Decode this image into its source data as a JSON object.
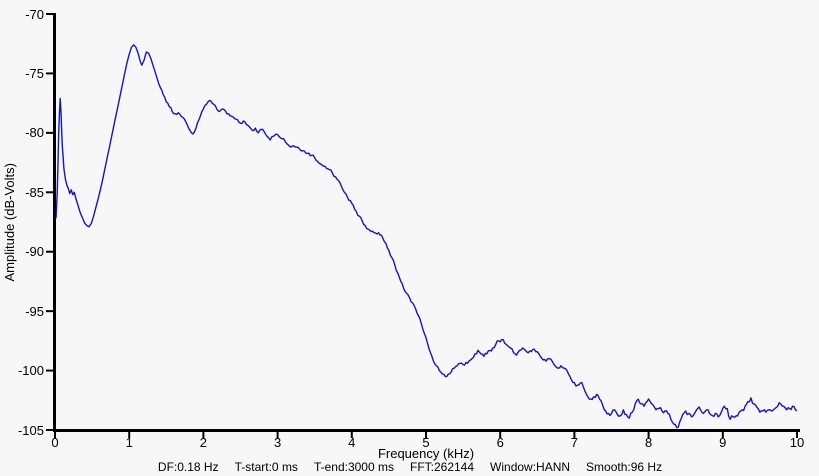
{
  "window": {
    "background_color": "#f7f7f7"
  },
  "status": {
    "fields": [
      "DF:0.18 Hz",
      "T-start:0 ms",
      "T-end:3000 ms",
      "FFT:262144",
      "Window:HANN",
      "Smooth:96 Hz"
    ]
  },
  "chart_data": {
    "type": "line",
    "title": "",
    "xlabel": "Frequency (kHz)",
    "ylabel": "Amplitude (dB-Volts)",
    "xlim": [
      0,
      10
    ],
    "ylim": [
      -105,
      -70
    ],
    "x_ticks": [
      0,
      1,
      2,
      3,
      4,
      5,
      6,
      7,
      8,
      9,
      10
    ],
    "y_ticks": [
      -70,
      -75,
      -80,
      -85,
      -90,
      -95,
      -100,
      -105
    ],
    "grid": false,
    "legend": "none",
    "line_color": "#1414c8",
    "axis_color": "#000000",
    "noise_db_render_hint": [
      0.05,
      0.13,
      0.16,
      0.21
    ],
    "series": [
      {
        "name": "spectrum",
        "points": [
          [
            0.013,
            -87.2
          ],
          [
            0.02,
            -86.4
          ],
          [
            0.03,
            -85.0
          ],
          [
            0.04,
            -82.6
          ],
          [
            0.05,
            -80.0
          ],
          [
            0.06,
            -78.2
          ],
          [
            0.07,
            -77.1
          ],
          [
            0.08,
            -78.1
          ],
          [
            0.09,
            -79.9
          ],
          [
            0.1,
            -81.2
          ],
          [
            0.11,
            -82.1
          ],
          [
            0.12,
            -83.0
          ],
          [
            0.14,
            -83.9
          ],
          [
            0.16,
            -84.4
          ],
          [
            0.18,
            -84.7
          ],
          [
            0.2,
            -85.1
          ],
          [
            0.22,
            -84.8
          ],
          [
            0.24,
            -85.2
          ],
          [
            0.26,
            -85.0
          ],
          [
            0.28,
            -85.5
          ],
          [
            0.3,
            -85.9
          ],
          [
            0.32,
            -86.3
          ],
          [
            0.34,
            -86.7
          ],
          [
            0.36,
            -87.0
          ],
          [
            0.38,
            -87.3
          ],
          [
            0.4,
            -87.6
          ],
          [
            0.43,
            -87.8
          ],
          [
            0.46,
            -87.9
          ],
          [
            0.49,
            -87.6
          ],
          [
            0.52,
            -87.0
          ],
          [
            0.55,
            -86.3
          ],
          [
            0.58,
            -85.6
          ],
          [
            0.61,
            -84.8
          ],
          [
            0.64,
            -84.0
          ],
          [
            0.67,
            -83.1
          ],
          [
            0.7,
            -82.2
          ],
          [
            0.73,
            -81.3
          ],
          [
            0.76,
            -80.4
          ],
          [
            0.79,
            -79.5
          ],
          [
            0.82,
            -78.6
          ],
          [
            0.85,
            -77.7
          ],
          [
            0.88,
            -76.8
          ],
          [
            0.91,
            -75.9
          ],
          [
            0.94,
            -75.0
          ],
          [
            0.97,
            -74.1
          ],
          [
            1.0,
            -73.4
          ],
          [
            1.03,
            -72.8
          ],
          [
            1.06,
            -72.6
          ],
          [
            1.09,
            -72.8
          ],
          [
            1.12,
            -73.3
          ],
          [
            1.15,
            -74.0
          ],
          [
            1.17,
            -74.3
          ],
          [
            1.2,
            -73.9
          ],
          [
            1.23,
            -73.2
          ],
          [
            1.26,
            -73.3
          ],
          [
            1.29,
            -73.7
          ],
          [
            1.32,
            -74.3
          ],
          [
            1.35,
            -74.9
          ],
          [
            1.38,
            -75.5
          ],
          [
            1.42,
            -76.2
          ],
          [
            1.46,
            -76.8
          ],
          [
            1.5,
            -77.4
          ],
          [
            1.54,
            -77.8
          ],
          [
            1.58,
            -78.2
          ],
          [
            1.62,
            -78.4
          ],
          [
            1.66,
            -78.3
          ],
          [
            1.7,
            -78.6
          ],
          [
            1.74,
            -78.8
          ],
          [
            1.78,
            -79.3
          ],
          [
            1.82,
            -79.8
          ],
          [
            1.86,
            -80.1
          ],
          [
            1.9,
            -79.6
          ],
          [
            1.94,
            -78.9
          ],
          [
            1.98,
            -78.2
          ],
          [
            2.02,
            -77.7
          ],
          [
            2.06,
            -77.4
          ],
          [
            2.1,
            -77.3
          ],
          [
            2.14,
            -77.6
          ],
          [
            2.18,
            -78.0
          ],
          [
            2.22,
            -78.2
          ],
          [
            2.26,
            -78.0
          ],
          [
            2.3,
            -78.2
          ],
          [
            2.34,
            -78.4
          ],
          [
            2.38,
            -78.6
          ],
          [
            2.42,
            -78.8
          ],
          [
            2.46,
            -78.9
          ],
          [
            2.5,
            -79.2
          ],
          [
            2.54,
            -79.0
          ],
          [
            2.58,
            -79.3
          ],
          [
            2.62,
            -79.5
          ],
          [
            2.66,
            -79.8
          ],
          [
            2.7,
            -79.6
          ],
          [
            2.74,
            -80.0
          ],
          [
            2.78,
            -79.7
          ],
          [
            2.82,
            -79.9
          ],
          [
            2.86,
            -80.3
          ],
          [
            2.9,
            -80.6
          ],
          [
            2.94,
            -80.3
          ],
          [
            2.98,
            -80.1
          ],
          [
            3.02,
            -80.3
          ],
          [
            3.06,
            -80.5
          ],
          [
            3.1,
            -80.7
          ],
          [
            3.14,
            -81.0
          ],
          [
            3.18,
            -81.2
          ],
          [
            3.22,
            -81.1
          ],
          [
            3.26,
            -81.2
          ],
          [
            3.3,
            -81.4
          ],
          [
            3.34,
            -81.5
          ],
          [
            3.38,
            -81.7
          ],
          [
            3.42,
            -81.7
          ],
          [
            3.46,
            -81.9
          ],
          [
            3.5,
            -82.1
          ],
          [
            3.54,
            -82.4
          ],
          [
            3.58,
            -82.6
          ],
          [
            3.62,
            -82.8
          ],
          [
            3.66,
            -83.0
          ],
          [
            3.7,
            -83.1
          ],
          [
            3.74,
            -83.4
          ],
          [
            3.78,
            -83.7
          ],
          [
            3.82,
            -84.0
          ],
          [
            3.86,
            -84.5
          ],
          [
            3.9,
            -85.0
          ],
          [
            3.94,
            -85.4
          ],
          [
            3.98,
            -85.7
          ],
          [
            4.02,
            -86.1
          ],
          [
            4.06,
            -86.6
          ],
          [
            4.1,
            -87.0
          ],
          [
            4.14,
            -87.4
          ],
          [
            4.18,
            -87.8
          ],
          [
            4.22,
            -88.1
          ],
          [
            4.26,
            -88.3
          ],
          [
            4.3,
            -88.4
          ],
          [
            4.34,
            -88.5
          ],
          [
            4.38,
            -88.6
          ],
          [
            4.42,
            -88.9
          ],
          [
            4.46,
            -89.3
          ],
          [
            4.5,
            -89.9
          ],
          [
            4.54,
            -90.5
          ],
          [
            4.58,
            -91.1
          ],
          [
            4.62,
            -91.8
          ],
          [
            4.66,
            -92.5
          ],
          [
            4.7,
            -93.1
          ],
          [
            4.74,
            -93.5
          ],
          [
            4.78,
            -93.9
          ],
          [
            4.82,
            -94.3
          ],
          [
            4.86,
            -94.8
          ],
          [
            4.9,
            -95.4
          ],
          [
            4.94,
            -96.1
          ],
          [
            4.98,
            -96.9
          ],
          [
            5.02,
            -97.7
          ],
          [
            5.06,
            -98.5
          ],
          [
            5.1,
            -99.2
          ],
          [
            5.14,
            -99.6
          ],
          [
            5.18,
            -100.0
          ],
          [
            5.22,
            -100.3
          ],
          [
            5.26,
            -100.5
          ],
          [
            5.3,
            -100.3
          ],
          [
            5.34,
            -100.1
          ],
          [
            5.38,
            -99.8
          ],
          [
            5.42,
            -99.6
          ],
          [
            5.46,
            -99.4
          ],
          [
            5.5,
            -99.5
          ],
          [
            5.54,
            -99.3
          ],
          [
            5.58,
            -99.2
          ],
          [
            5.62,
            -99.0
          ],
          [
            5.66,
            -98.6
          ],
          [
            5.7,
            -98.3
          ],
          [
            5.74,
            -98.6
          ],
          [
            5.78,
            -98.8
          ],
          [
            5.82,
            -98.6
          ],
          [
            5.86,
            -98.3
          ],
          [
            5.9,
            -98.1
          ],
          [
            5.94,
            -97.8
          ],
          [
            5.98,
            -97.5
          ],
          [
            6.02,
            -97.4
          ],
          [
            6.06,
            -97.7
          ],
          [
            6.1,
            -97.9
          ],
          [
            6.14,
            -98.1
          ],
          [
            6.18,
            -98.5
          ],
          [
            6.22,
            -98.7
          ],
          [
            6.26,
            -98.3
          ],
          [
            6.3,
            -98.1
          ],
          [
            6.34,
            -98.3
          ],
          [
            6.38,
            -98.5
          ],
          [
            6.42,
            -98.4
          ],
          [
            6.46,
            -98.2
          ],
          [
            6.5,
            -98.4
          ],
          [
            6.54,
            -98.8
          ],
          [
            6.58,
            -99.1
          ],
          [
            6.62,
            -99.2
          ],
          [
            6.66,
            -99.0
          ],
          [
            6.7,
            -99.2
          ],
          [
            6.74,
            -99.6
          ],
          [
            6.78,
            -99.8
          ],
          [
            6.82,
            -99.6
          ],
          [
            6.86,
            -99.8
          ],
          [
            6.9,
            -100.0
          ],
          [
            6.94,
            -100.5
          ],
          [
            6.98,
            -101.0
          ],
          [
            7.02,
            -101.3
          ],
          [
            7.06,
            -101.2
          ],
          [
            7.1,
            -101.0
          ],
          [
            7.14,
            -101.7
          ],
          [
            7.18,
            -102.2
          ],
          [
            7.22,
            -102.4
          ],
          [
            7.26,
            -102.2
          ],
          [
            7.3,
            -102.0
          ],
          [
            7.34,
            -102.4
          ],
          [
            7.38,
            -102.9
          ],
          [
            7.42,
            -103.4
          ],
          [
            7.46,
            -103.6
          ],
          [
            7.5,
            -103.6
          ],
          [
            7.54,
            -103.3
          ],
          [
            7.58,
            -103.7
          ],
          [
            7.62,
            -103.8
          ],
          [
            7.66,
            -103.3
          ],
          [
            7.7,
            -103.7
          ],
          [
            7.74,
            -104.0
          ],
          [
            7.78,
            -103.5
          ],
          [
            7.82,
            -102.8
          ],
          [
            7.86,
            -102.4
          ],
          [
            7.9,
            -102.8
          ],
          [
            7.94,
            -103.0
          ],
          [
            7.98,
            -102.6
          ],
          [
            8.02,
            -102.6
          ],
          [
            8.06,
            -102.9
          ],
          [
            8.1,
            -103.3
          ],
          [
            8.14,
            -103.2
          ],
          [
            8.18,
            -103.4
          ],
          [
            8.22,
            -103.4
          ],
          [
            8.26,
            -103.6
          ],
          [
            8.3,
            -104.1
          ],
          [
            8.34,
            -104.5
          ],
          [
            8.38,
            -104.8
          ],
          [
            8.42,
            -104.3
          ],
          [
            8.46,
            -103.7
          ],
          [
            8.5,
            -103.4
          ],
          [
            8.54,
            -103.6
          ],
          [
            8.58,
            -103.9
          ],
          [
            8.62,
            -103.6
          ],
          [
            8.66,
            -103.2
          ],
          [
            8.7,
            -103.3
          ],
          [
            8.74,
            -103.6
          ],
          [
            8.78,
            -103.3
          ],
          [
            8.82,
            -103.6
          ],
          [
            8.86,
            -103.8
          ],
          [
            8.9,
            -103.6
          ],
          [
            8.94,
            -103.9
          ],
          [
            8.98,
            -103.5
          ],
          [
            9.02,
            -103.0
          ],
          [
            9.06,
            -103.2
          ],
          [
            9.1,
            -104.1
          ],
          [
            9.14,
            -103.9
          ],
          [
            9.18,
            -103.8
          ],
          [
            9.22,
            -103.5
          ],
          [
            9.26,
            -103.3
          ],
          [
            9.3,
            -103.0
          ],
          [
            9.34,
            -102.6
          ],
          [
            9.38,
            -102.3
          ],
          [
            9.42,
            -102.8
          ],
          [
            9.46,
            -103.1
          ],
          [
            9.5,
            -103.5
          ],
          [
            9.54,
            -103.4
          ],
          [
            9.58,
            -103.5
          ],
          [
            9.62,
            -103.3
          ],
          [
            9.66,
            -103.4
          ],
          [
            9.7,
            -103.2
          ],
          [
            9.74,
            -103.0
          ],
          [
            9.78,
            -102.8
          ],
          [
            9.82,
            -103.0
          ],
          [
            9.86,
            -103.3
          ],
          [
            9.9,
            -103.2
          ],
          [
            9.94,
            -103.0
          ],
          [
            9.98,
            -103.3
          ],
          [
            10.0,
            -103.4
          ]
        ]
      }
    ]
  }
}
